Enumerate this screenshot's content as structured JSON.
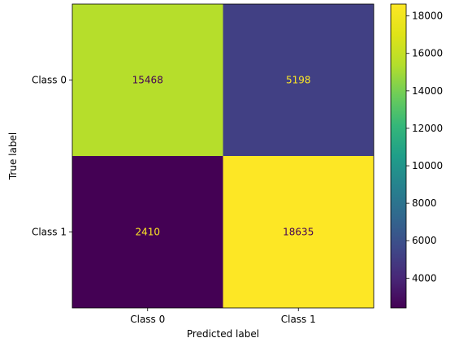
{
  "chart_data": {
    "type": "heatmap",
    "xlabel": "Predicted label",
    "ylabel": "True label",
    "x_categories": [
      "Class 0",
      "Class 1"
    ],
    "y_categories": [
      "Class 0",
      "Class 1"
    ],
    "matrix": [
      [
        15468,
        5198
      ],
      [
        2410,
        18635
      ]
    ],
    "colormap": "viridis",
    "colorbar": {
      "min": 2410,
      "max": 18635,
      "ticks": [
        4000,
        6000,
        8000,
        10000,
        12000,
        14000,
        16000,
        18000
      ]
    },
    "grid": false,
    "legend": "colorbar-right"
  }
}
